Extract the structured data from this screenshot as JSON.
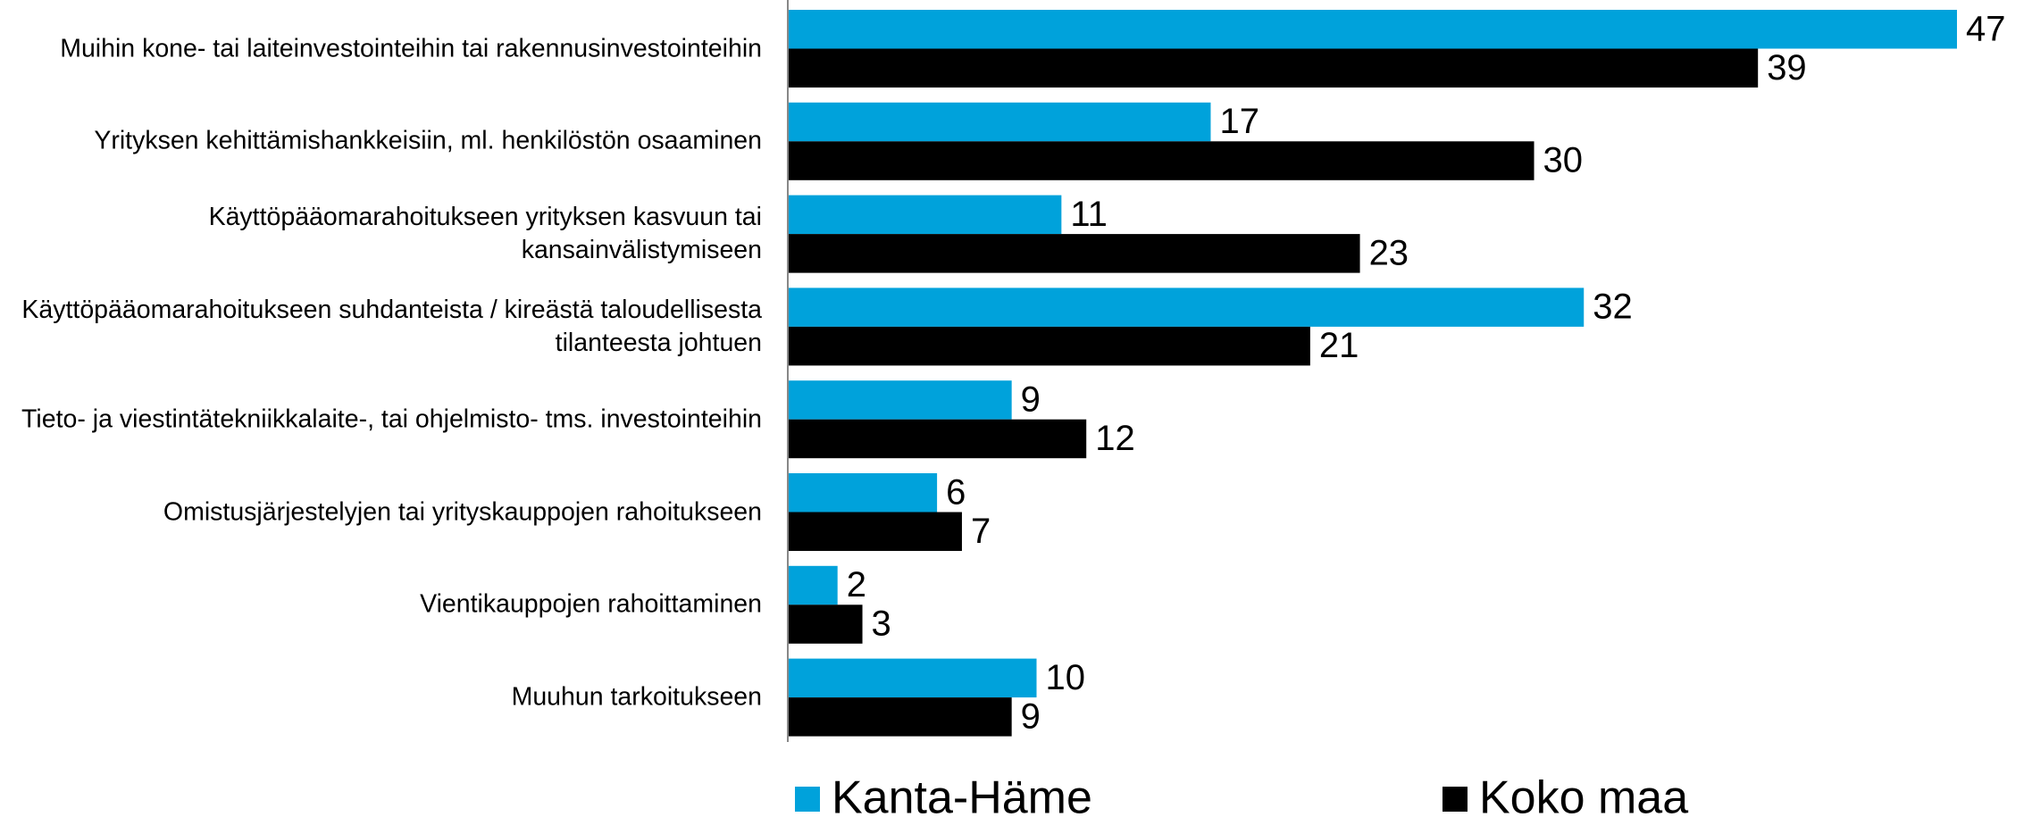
{
  "chart_data": {
    "type": "barh",
    "categories": [
      "Muihin kone- tai laiteinvestointeihin tai rakennusinvestointeihin",
      "Yrityksen kehittämishankkeisiin, ml. henkilöstön osaaminen",
      "Käyttöpääomarahoitukseen yrityksen kasvuun tai kansainvälistymiseen",
      "Käyttöpääomarahoitukseen suhdanteista / kireästä taloudellisesta tilanteesta johtuen",
      "Tieto- ja viestintätekniikkalaite-, tai ohjelmisto- tms. investointeihin",
      "Omistusjärjestelyjen tai yrityskauppojen rahoitukseen",
      "Vientikauppojen rahoittaminen",
      "Muuhun tarkoitukseen"
    ],
    "series": [
      {
        "name": "Kanta-Häme",
        "color": "#00a2db",
        "values": [
          47,
          17,
          11,
          32,
          9,
          6,
          2,
          10
        ]
      },
      {
        "name": "Koko maa",
        "color": "#000000",
        "values": [
          39,
          30,
          23,
          21,
          12,
          7,
          3,
          9
        ]
      }
    ],
    "legend": "bottom"
  }
}
